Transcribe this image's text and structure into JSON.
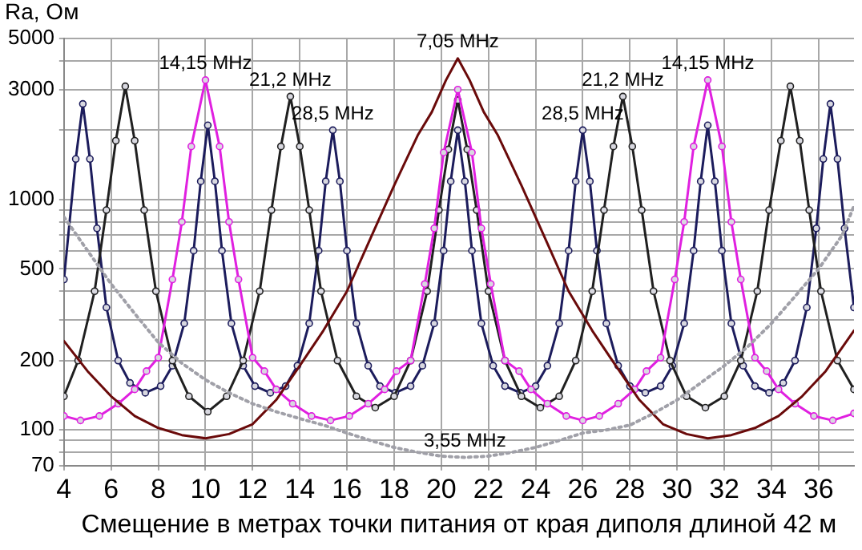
{
  "chart_data": {
    "type": "line",
    "ylabel": "Ra, Ом",
    "xlabel": "Смещение в метрах точки питания от края диполя длиной 42 м",
    "log": "y",
    "grid": true,
    "legend": false,
    "xlim": [
      4,
      37.5
    ],
    "xticks": [
      4,
      6,
      8,
      10,
      12,
      14,
      16,
      18,
      20,
      22,
      24,
      26,
      28,
      30,
      32,
      34,
      36
    ],
    "ylim": [
      70,
      5000
    ],
    "yticks": [
      70,
      {
        "value": 80,
        "label": null
      },
      {
        "value": 90,
        "label": null
      },
      100,
      200,
      {
        "value": 300,
        "label": null
      },
      {
        "value": 400,
        "label": null
      },
      500,
      {
        "value": 600,
        "label": null
      },
      {
        "value": 700,
        "label": null
      },
      {
        "value": 800,
        "label": null
      },
      {
        "value": 900,
        "label": null
      },
      1000,
      {
        "value": 2000,
        "label": null
      },
      3000,
      {
        "value": 4000,
        "label": null
      },
      5000
    ],
    "series": [
      {
        "color": "#a0a0a8",
        "line_style": "dotted",
        "marker": "none",
        "x": [
          4,
          5,
          6,
          7,
          8,
          9,
          10,
          11,
          12,
          13,
          14,
          15,
          16,
          17,
          18,
          19,
          20,
          21,
          22,
          23,
          24,
          25,
          26,
          27,
          28,
          29,
          30,
          31,
          32,
          33,
          34,
          35,
          36,
          37,
          37.5
        ],
        "values": [
          840,
          600,
          430,
          320,
          240,
          195,
          165,
          145,
          130,
          120,
          112,
          105,
          97,
          90,
          84,
          80,
          77,
          76,
          77,
          80,
          84,
          90,
          97,
          100,
          105,
          118,
          135,
          160,
          190,
          230,
          290,
          380,
          500,
          700,
          940
        ]
      },
      {
        "color": "#6a0a0a",
        "line_style": "solid",
        "marker": "none",
        "x": [
          4,
          5,
          6,
          7,
          8,
          9,
          10,
          11,
          12,
          13,
          14,
          15,
          16,
          17,
          18,
          19,
          19.6,
          20.2,
          20.7,
          21.2,
          21.8,
          22.4,
          23.4,
          24.4,
          25.4,
          26.4,
          27.4,
          28.4,
          29.4,
          30.4,
          31.3,
          32.3,
          33.3,
          34.3,
          35.3,
          36.3,
          37.5
        ],
        "values": [
          243,
          180,
          140,
          115,
          102,
          95,
          92,
          96,
          106,
          135,
          190,
          270,
          400,
          680,
          1150,
          1900,
          2400,
          3300,
          4100,
          3300,
          2400,
          1900,
          1150,
          680,
          400,
          270,
          190,
          135,
          106,
          96,
          92,
          95,
          102,
          115,
          140,
          180,
          270
        ]
      },
      {
        "color": "#e020e0",
        "line_style": "solid",
        "marker": "circle",
        "x": [
          4,
          4.7,
          5.5,
          6.3,
          7,
          7.5,
          8,
          8.6,
          9,
          9.4,
          10,
          10.6,
          11,
          11.4,
          12,
          12.5,
          13,
          13.7,
          14.5,
          15.3,
          16.1,
          16.9,
          17.6,
          18.1,
          18.7,
          19.3,
          19.7,
          20.1,
          20.7,
          21.3,
          21.7,
          22.1,
          22.7,
          23.3,
          23.8,
          24.5,
          25.3,
          26,
          26.7,
          27.5,
          28.2,
          28.7,
          29.3,
          29.9,
          30.3,
          30.7,
          31.3,
          31.9,
          32.3,
          32.7,
          33.3,
          33.8,
          34.3,
          35,
          35.8,
          36.6,
          37.5
        ],
        "values": [
          115,
          110,
          115,
          130,
          150,
          180,
          206,
          450,
          800,
          1700,
          3300,
          1700,
          800,
          450,
          206,
          180,
          150,
          130,
          115,
          110,
          115,
          130,
          150,
          180,
          200,
          430,
          750,
          1600,
          3000,
          1600,
          750,
          430,
          200,
          180,
          150,
          130,
          115,
          110,
          115,
          130,
          150,
          180,
          206,
          450,
          800,
          1700,
          3300,
          1700,
          800,
          450,
          206,
          180,
          150,
          130,
          115,
          110,
          118
        ]
      },
      {
        "color": "#202020",
        "line_style": "solid",
        "marker": "circle",
        "x": [
          4,
          4.6,
          5.3,
          5.8,
          6.2,
          6.6,
          7,
          7.4,
          7.9,
          8.6,
          9.3,
          10.1,
          10.9,
          11.6,
          12.3,
          12.8,
          13.2,
          13.6,
          14,
          14.4,
          14.9,
          15.6,
          16.4,
          17.2,
          18,
          18.7,
          19.4,
          19.9,
          20.3,
          20.7,
          21.1,
          21.5,
          22,
          22.7,
          23.4,
          24.2,
          25,
          25.7,
          26.4,
          26.9,
          27.3,
          27.7,
          28.1,
          28.5,
          29,
          29.7,
          30.4,
          31.2,
          32,
          32.7,
          33.4,
          33.9,
          34.4,
          34.8,
          35.2,
          35.6,
          36.1,
          36.8,
          37.5
        ],
        "values": [
          140,
          200,
          400,
          900,
          1800,
          3100,
          1800,
          900,
          400,
          200,
          140,
          120,
          140,
          200,
          400,
          900,
          1700,
          2800,
          1700,
          900,
          400,
          200,
          140,
          125,
          140,
          200,
          400,
          900,
          1650,
          2700,
          1650,
          900,
          400,
          200,
          140,
          125,
          140,
          200,
          400,
          900,
          1700,
          2800,
          1700,
          900,
          400,
          200,
          140,
          125,
          140,
          200,
          400,
          900,
          1800,
          3100,
          1800,
          900,
          400,
          200,
          150
        ]
      },
      {
        "color": "#1c1c5c",
        "line_style": "solid",
        "marker": "circle",
        "x": [
          4,
          4.5,
          4.8,
          5.1,
          5.4,
          5.8,
          6.3,
          6.8,
          7.45,
          8.1,
          8.6,
          9.1,
          9.5,
          9.8,
          10.1,
          10.4,
          10.7,
          11.1,
          11.6,
          12.1,
          12.75,
          13.4,
          13.9,
          14.4,
          14.8,
          15.1,
          15.4,
          15.7,
          16,
          16.4,
          16.9,
          17.4,
          18.05,
          18.7,
          19.2,
          19.7,
          20.1,
          20.4,
          20.7,
          21,
          21.3,
          21.7,
          22.2,
          22.7,
          23.35,
          24,
          24.5,
          25,
          25.4,
          25.7,
          26,
          26.3,
          26.6,
          27,
          27.5,
          28,
          28.65,
          29.3,
          29.8,
          30.3,
          30.7,
          31,
          31.3,
          31.6,
          31.9,
          32.3,
          32.8,
          33.3,
          33.9,
          34.5,
          35,
          35.5,
          35.9,
          36.2,
          36.5,
          36.8,
          37.1,
          37.5
        ],
        "values": [
          450,
          1500,
          2600,
          1500,
          750,
          340,
          200,
          160,
          145,
          155,
          190,
          290,
          600,
          1200,
          2100,
          1200,
          600,
          290,
          190,
          155,
          145,
          155,
          190,
          290,
          600,
          1200,
          2000,
          1200,
          600,
          290,
          190,
          155,
          145,
          155,
          190,
          290,
          600,
          1200,
          2000,
          1200,
          600,
          290,
          190,
          155,
          145,
          155,
          190,
          290,
          600,
          1200,
          2000,
          1200,
          600,
          290,
          190,
          155,
          145,
          155,
          190,
          290,
          600,
          1200,
          2100,
          1200,
          600,
          290,
          190,
          155,
          145,
          160,
          200,
          340,
          750,
          1500,
          2600,
          1500,
          750,
          340
        ]
      }
    ],
    "annotations": [
      {
        "text": "14,15 MHz",
        "x": 10,
        "y": 3300
      },
      {
        "text": "21,2 MHz",
        "x": 13.6,
        "y": 2800
      },
      {
        "text": "28,5 MHz",
        "x": 15.4,
        "y": 2000
      },
      {
        "text": "7,05 MHz",
        "x": 20.7,
        "y": 4100
      },
      {
        "text": "28,5 MHz",
        "x": 26,
        "y": 2000
      },
      {
        "text": "21,2 MHz",
        "x": 27.7,
        "y": 2800
      },
      {
        "text": "14,15 MHz",
        "x": 31.3,
        "y": 3300
      },
      {
        "text": "3,55 MHz",
        "x": 21,
        "y": 76
      }
    ]
  }
}
